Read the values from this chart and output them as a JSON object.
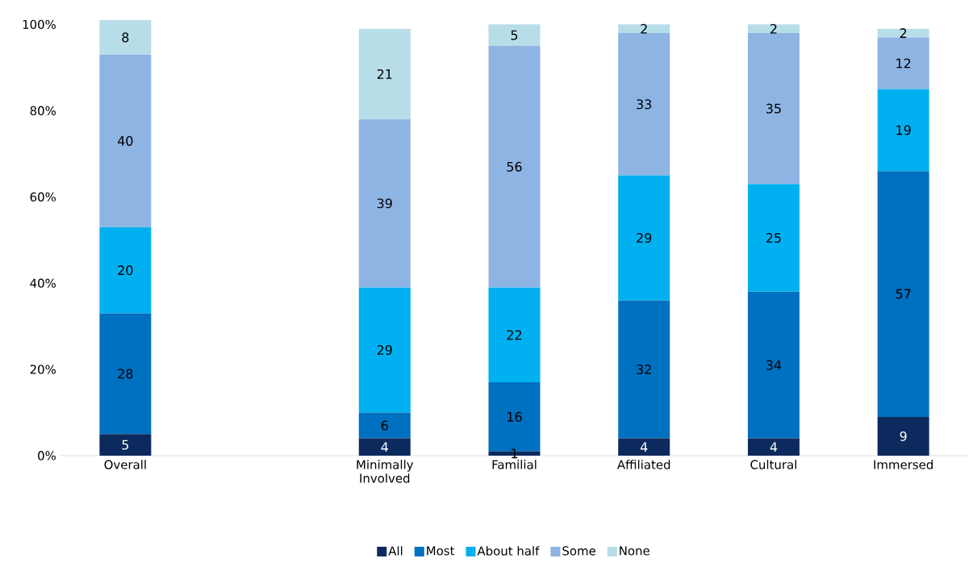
{
  "chart_data": {
    "type": "bar",
    "stacked": true,
    "categories": [
      "Overall",
      null,
      "Minimally Involved",
      "Familial",
      "Affiliated",
      "Cultural",
      "Immersed"
    ],
    "series": [
      {
        "name": "All",
        "color": "#0d2a5e",
        "values": [
          5,
          null,
          4,
          1,
          4,
          4,
          9
        ]
      },
      {
        "name": "Most",
        "color": "#0070c0",
        "values": [
          28,
          null,
          6,
          16,
          32,
          34,
          57
        ]
      },
      {
        "name": "About half",
        "color": "#00b0f0",
        "values": [
          20,
          null,
          29,
          22,
          29,
          25,
          19
        ]
      },
      {
        "name": "Some",
        "color": "#8eb4e3",
        "values": [
          40,
          null,
          39,
          56,
          33,
          35,
          12
        ]
      },
      {
        "name": "None",
        "color": "#b7dde8",
        "values": [
          8,
          null,
          21,
          5,
          2,
          2,
          2
        ]
      }
    ],
    "ylim": [
      0,
      101
    ],
    "yticks": [
      {
        "value": 0,
        "label": "0%"
      },
      {
        "value": 20,
        "label": "20%"
      },
      {
        "value": 40,
        "label": "40%"
      },
      {
        "value": 60,
        "label": "60%"
      },
      {
        "value": 80,
        "label": "80%"
      },
      {
        "value": 100,
        "label": "100%"
      }
    ],
    "data_labels": true,
    "grid": false,
    "legend": "bottom"
  }
}
